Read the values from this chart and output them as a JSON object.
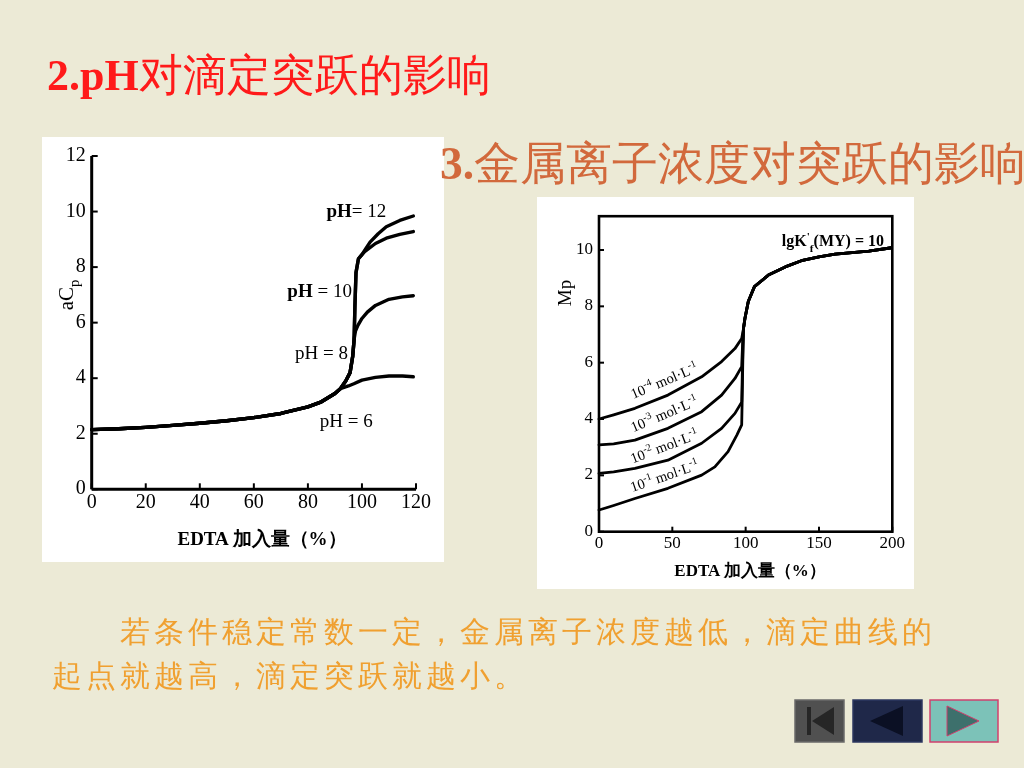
{
  "chart_data": [
    {
      "type": "line",
      "title": "**2.pH**对滴定突跃的影响",
      "xlabel": "EDTA 加入量（%）",
      "ylabel": "aC$_{p}$",
      "xlim": [
        0,
        120
      ],
      "ylim": [
        0,
        12
      ],
      "xticks": [
        0,
        20,
        40,
        60,
        80,
        100,
        120
      ],
      "yticks": [
        0,
        2,
        4,
        6,
        8,
        10,
        12
      ],
      "series": [
        {
          "name": "**pH**= 12",
          "color": "#000000",
          "x": [
            0,
            10,
            20,
            30,
            40,
            50,
            60,
            70,
            80,
            85,
            90,
            92,
            94,
            95.6,
            96.6,
            97.1,
            97.4,
            97.8,
            98.7,
            100,
            101,
            103,
            106,
            109,
            114,
            119
          ],
          "values": [
            2.15,
            2.18,
            2.23,
            2.3,
            2.38,
            2.47,
            2.58,
            2.73,
            2.97,
            3.15,
            3.45,
            3.62,
            3.9,
            4.2,
            4.8,
            5.4,
            6.6,
            7.8,
            8.3,
            8.45,
            8.6,
            8.9,
            9.2,
            9.45,
            9.68,
            9.84
          ]
        },
        {
          "name": "**pH** = 10",
          "color": "#000000",
          "x": [
            0,
            10,
            20,
            30,
            40,
            50,
            60,
            70,
            80,
            85,
            90,
            92,
            94,
            95.6,
            96.6,
            97.1,
            97.4,
            97.8,
            98.7,
            100,
            101,
            105,
            109,
            114,
            119
          ],
          "values": [
            2.15,
            2.18,
            2.23,
            2.3,
            2.38,
            2.47,
            2.58,
            2.73,
            2.97,
            3.15,
            3.45,
            3.62,
            3.9,
            4.2,
            4.8,
            5.4,
            6.6,
            7.8,
            8.3,
            8.45,
            8.56,
            8.85,
            9.04,
            9.18,
            9.28
          ]
        },
        {
          "name": "pH = 8",
          "color": "#000000",
          "x": [
            0,
            10,
            20,
            30,
            40,
            50,
            60,
            70,
            80,
            85,
            90,
            92,
            94,
            95.6,
            96.6,
            97.1,
            97.6,
            98.5,
            100,
            102,
            105,
            110,
            115,
            119
          ],
          "values": [
            2.15,
            2.18,
            2.23,
            2.3,
            2.38,
            2.47,
            2.58,
            2.73,
            2.97,
            3.15,
            3.45,
            3.62,
            3.9,
            4.2,
            4.8,
            5.4,
            5.7,
            5.9,
            6.15,
            6.38,
            6.62,
            6.84,
            6.93,
            6.97
          ]
        },
        {
          "name": "pH = 6",
          "color": "#000000",
          "x": [
            0,
            10,
            20,
            30,
            40,
            50,
            60,
            70,
            80,
            85,
            90,
            92,
            95,
            97,
            100,
            105,
            110,
            115,
            119
          ],
          "values": [
            2.15,
            2.18,
            2.23,
            2.3,
            2.38,
            2.47,
            2.58,
            2.73,
            2.97,
            3.15,
            3.45,
            3.62,
            3.72,
            3.8,
            3.93,
            4.03,
            4.08,
            4.08,
            4.05
          ]
        }
      ]
    },
    {
      "type": "line",
      "title": "**3.**金属离子浓度对突跃的影响",
      "xlabel": "EDTA 加入量（%）",
      "ylabel": "Mp",
      "xlim": [
        0,
        200
      ],
      "ylim": [
        0,
        11.2
      ],
      "xticks": [
        0,
        50,
        100,
        150,
        200
      ],
      "yticks": [
        0,
        2,
        4,
        6,
        8,
        10
      ],
      "annotations": [
        "lgK$^{'}$$_{f}$(MY) = 10",
        "若条件稳定常数一定，金属离子浓度越低，滴定曲线的起点就越高，滴定突跃就越小。"
      ],
      "series": [
        {
          "name": "10$^{-4}$ mol·L$^{-1}$",
          "color": "#000000",
          "x": [
            0,
            10,
            24.5,
            47,
            70,
            83.6,
            92.7,
            97.3,
            98.5,
            99.5,
            101.8,
            106,
            115.5,
            127,
            138,
            150,
            161,
            184,
            199.5
          ],
          "values": [
            4.0,
            4.15,
            4.38,
            4.85,
            5.5,
            6.04,
            6.5,
            6.86,
            7.2,
            7.57,
            8.17,
            8.7,
            9.11,
            9.4,
            9.62,
            9.76,
            9.85,
            9.96,
            10.08
          ]
        },
        {
          "name": "10$^{-3}$ mol·L$^{-1}$",
          "color": "#000000",
          "x": [
            0,
            10,
            24.5,
            47,
            70,
            83.6,
            92.7,
            97.3,
            97.8,
            98.5,
            99.5,
            101.8,
            106,
            115.5,
            127,
            138,
            150,
            161,
            184,
            199.5
          ],
          "values": [
            3.08,
            3.12,
            3.25,
            3.67,
            4.26,
            4.85,
            5.44,
            5.86,
            6.5,
            7.2,
            7.57,
            8.17,
            8.7,
            9.11,
            9.4,
            9.62,
            9.76,
            9.85,
            9.96,
            10.08
          ]
        },
        {
          "name": "10$^{-2}$ mol·L$^{-1}$",
          "color": "#000000",
          "x": [
            0,
            10,
            24.5,
            47,
            70,
            83.6,
            92.7,
            97.3,
            97.6,
            98,
            98.5,
            99.5,
            101.8,
            106,
            115.5,
            127,
            138,
            150,
            161,
            184,
            199.5
          ],
          "values": [
            2.07,
            2.12,
            2.25,
            2.54,
            3.14,
            3.67,
            4.2,
            4.6,
            5.3,
            6.3,
            7.2,
            7.57,
            8.17,
            8.7,
            9.11,
            9.4,
            9.62,
            9.76,
            9.85,
            9.96,
            10.08
          ]
        },
        {
          "name": "10$^{-1}$ mol·L$^{-1}$",
          "color": "#000000",
          "x": [
            0,
            10,
            24.5,
            47,
            70,
            79,
            88,
            94,
            97.3,
            97.6,
            98,
            98.5,
            99.5,
            101.8,
            106,
            115.5,
            127,
            138,
            150,
            161,
            184,
            199.5
          ],
          "values": [
            0.77,
            0.93,
            1.18,
            1.54,
            2.01,
            2.3,
            2.84,
            3.43,
            3.79,
            4.6,
            5.9,
            7.2,
            7.57,
            8.17,
            8.7,
            9.11,
            9.4,
            9.62,
            9.76,
            9.85,
            9.96,
            10.08
          ]
        }
      ]
    }
  ]
}
